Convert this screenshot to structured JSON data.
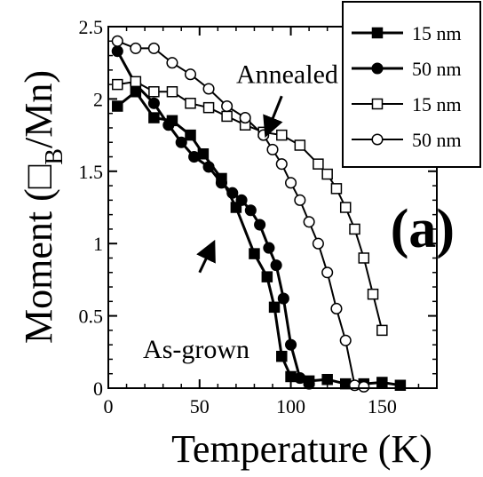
{
  "chart_data": {
    "type": "line",
    "xlabel": "Temperature (K)",
    "ylabel": "Moment (□B/Mn)",
    "ylabel_main": "Moment (",
    "ylabel_symbol": "□",
    "ylabel_sub": "B",
    "ylabel_tail": "/Mn)",
    "xlim": [
      0,
      180
    ],
    "ylim": [
      0,
      2.5
    ],
    "x_ticks": [
      0,
      50,
      100,
      150
    ],
    "x_tick_labels": [
      "0",
      "50",
      "100",
      "150"
    ],
    "y_ticks": [
      0,
      0.5,
      1,
      1.5,
      2,
      2.5
    ],
    "y_tick_labels": [
      "0",
      "0.5",
      "1",
      "1.5",
      "2",
      "2.5"
    ],
    "grid": false,
    "legend_position": "top-right",
    "panel_label": "(a)",
    "annotations": [
      {
        "text": "Annealed",
        "x": 98,
        "y": 2.17,
        "arrow_from": [
          95,
          2.02
        ],
        "arrow_to": [
          88,
          1.8
        ]
      },
      {
        "text": "As-grown",
        "x": 19,
        "y": 0.27,
        "arrow_from": [
          50,
          0.8
        ],
        "arrow_to": [
          56,
          0.96
        ]
      }
    ],
    "series": [
      {
        "name": "15 nm",
        "group": "As-grown",
        "marker": "square-filled",
        "x": [
          5,
          15,
          25,
          35,
          45,
          52,
          62,
          70,
          80,
          87,
          91,
          95,
          100,
          110,
          120,
          130,
          140,
          150,
          160
        ],
        "y": [
          1.95,
          2.05,
          1.87,
          1.85,
          1.75,
          1.62,
          1.45,
          1.25,
          0.93,
          0.77,
          0.56,
          0.22,
          0.08,
          0.05,
          0.06,
          0.03,
          0.03,
          0.04,
          0.02
        ]
      },
      {
        "name": "50 nm",
        "group": "As-grown",
        "marker": "circle-filled",
        "x": [
          5,
          15,
          25,
          33,
          40,
          47,
          55,
          62,
          68,
          73,
          78,
          83,
          88,
          92,
          96,
          100,
          105,
          110
        ],
        "y": [
          2.33,
          2.1,
          1.97,
          1.82,
          1.7,
          1.6,
          1.53,
          1.42,
          1.35,
          1.3,
          1.23,
          1.13,
          0.97,
          0.85,
          0.62,
          0.3,
          0.07,
          0.03
        ]
      },
      {
        "name": "15 nm",
        "group": "Annealed",
        "marker": "square-open",
        "x": [
          5,
          15,
          25,
          35,
          45,
          55,
          65,
          75,
          85,
          95,
          105,
          115,
          120,
          125,
          130,
          135,
          140,
          145,
          150
        ],
        "y": [
          2.1,
          2.12,
          2.05,
          2.05,
          1.97,
          1.94,
          1.88,
          1.82,
          1.77,
          1.75,
          1.68,
          1.55,
          1.48,
          1.38,
          1.25,
          1.1,
          0.9,
          0.65,
          0.4
        ]
      },
      {
        "name": "50 nm",
        "group": "Annealed",
        "marker": "circle-open",
        "x": [
          5,
          15,
          25,
          35,
          45,
          55,
          65,
          75,
          85,
          90,
          95,
          100,
          105,
          110,
          115,
          120,
          125,
          130,
          135,
          140
        ],
        "y": [
          2.4,
          2.35,
          2.35,
          2.25,
          2.17,
          2.07,
          1.95,
          1.87,
          1.75,
          1.65,
          1.55,
          1.42,
          1.3,
          1.15,
          1.0,
          0.8,
          0.55,
          0.33,
          0.02,
          0.01
        ]
      }
    ]
  }
}
